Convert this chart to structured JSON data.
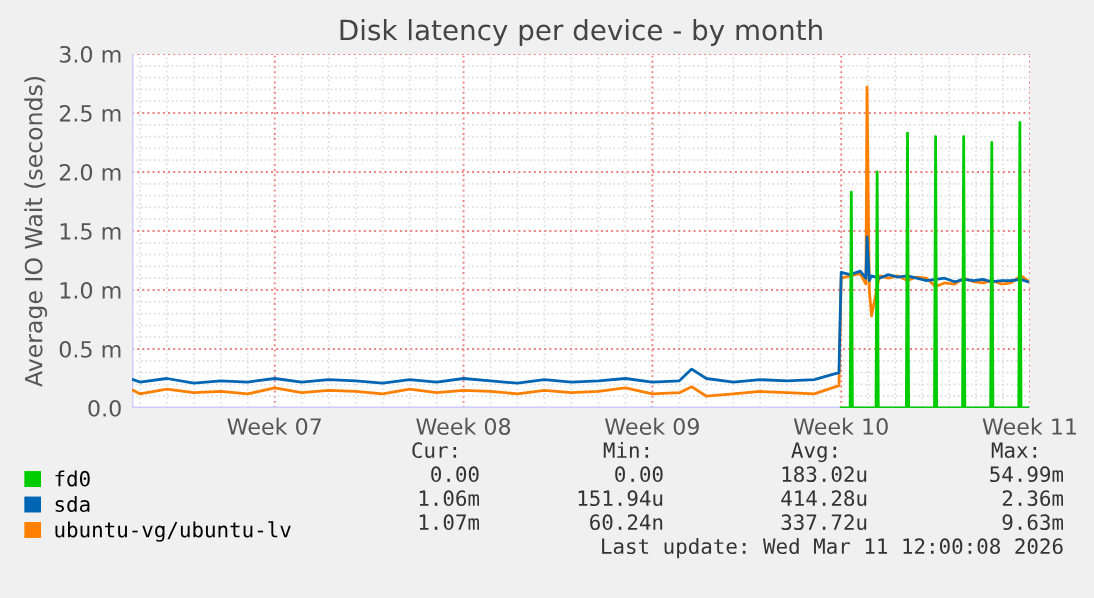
{
  "chart_data": {
    "type": "line",
    "title": "Disk latency per device - by month",
    "ylabel": "Average IO Wait (seconds)",
    "xlim": [
      "2026-02-03T17:00",
      "2026-03-09T00:00"
    ],
    "xticks": [
      {
        "value": "2026-02-09",
        "label": "Week 07"
      },
      {
        "value": "2026-02-16",
        "label": "Week 08"
      },
      {
        "value": "2026-02-23",
        "label": "Week 09"
      },
      {
        "value": "2026-03-02",
        "label": "Week 10"
      },
      {
        "value": "2026-03-09",
        "label": "Week 11"
      }
    ],
    "ylim": [
      0,
      3.0
    ],
    "yticks": [
      {
        "value": 0,
        "label": "0.0"
      },
      {
        "value": 0.5,
        "label": "0.5 m"
      },
      {
        "value": 1.0,
        "label": "1.0 m"
      },
      {
        "value": 1.5,
        "label": "1.5 m"
      },
      {
        "value": 2.0,
        "label": "2.0 m"
      },
      {
        "value": 2.5,
        "label": "2.5 m"
      },
      {
        "value": 3.0,
        "label": "3.0 m"
      }
    ],
    "grid": true,
    "legend": "bottom left",
    "series": [
      {
        "name": "fd0",
        "color": "#00cc00",
        "x": [
          "2026-03-02T00:00",
          "2026-03-02T08:00",
          "2026-03-02T09:00",
          "2026-03-02T10:00",
          "2026-03-03T07:00",
          "2026-03-03T08:00",
          "2026-03-03T09:00",
          "2026-03-04T10:00",
          "2026-03-04T11:00",
          "2026-03-04T12:00",
          "2026-03-05T11:00",
          "2026-03-05T12:00",
          "2026-03-05T13:00",
          "2026-03-06T12:00",
          "2026-03-06T13:00",
          "2026-03-06T14:00",
          "2026-03-07T13:00",
          "2026-03-07T14:00",
          "2026-03-07T15:00",
          "2026-03-08T14:00",
          "2026-03-08T15:00",
          "2026-03-08T16:00",
          "2026-03-08T22:00"
        ],
        "values": [
          0,
          0,
          1.83,
          0,
          0,
          2.0,
          0,
          0,
          2.33,
          0,
          0,
          2.3,
          0,
          0,
          2.3,
          0,
          0,
          2.25,
          0,
          0,
          2.42,
          0,
          0
        ]
      },
      {
        "name": "sda",
        "color": "#0066b3",
        "x": [
          "2026-02-03T18:00",
          "2026-02-04T00:00",
          "2026-02-05T00:00",
          "2026-02-06T00:00",
          "2026-02-07T00:00",
          "2026-02-08T00:00",
          "2026-02-09T00:00",
          "2026-02-10T00:00",
          "2026-02-11T00:00",
          "2026-02-12T00:00",
          "2026-02-13T00:00",
          "2026-02-14T00:00",
          "2026-02-15T00:00",
          "2026-02-16T00:00",
          "2026-02-17T00:00",
          "2026-02-18T00:00",
          "2026-02-19T00:00",
          "2026-02-20T00:00",
          "2026-02-21T00:00",
          "2026-02-22T00:00",
          "2026-02-23T00:00",
          "2026-02-24T00:00",
          "2026-02-24T11:00",
          "2026-02-25T00:00",
          "2026-02-26T00:00",
          "2026-02-27T00:00",
          "2026-02-28T00:00",
          "2026-03-01T00:00",
          "2026-03-01T22:00",
          "2026-03-02T00:00",
          "2026-03-02T08:00",
          "2026-03-02T17:00",
          "2026-03-02T22:00",
          "2026-03-02T23:00",
          "2026-03-03T01:00",
          "2026-03-03T03:00",
          "2026-03-03T10:00",
          "2026-03-03T18:00",
          "2026-03-04T02:00",
          "2026-03-04T11:00",
          "2026-03-04T19:00",
          "2026-03-05T04:00",
          "2026-03-05T12:00",
          "2026-03-05T20:00",
          "2026-03-06T05:00",
          "2026-03-06T13:00",
          "2026-03-06T22:00",
          "2026-03-07T06:00",
          "2026-03-07T14:00",
          "2026-03-07T23:00",
          "2026-03-08T07:00",
          "2026-03-08T16:00",
          "2026-03-08T22:00"
        ],
        "values": [
          0.24,
          0.22,
          0.25,
          0.21,
          0.23,
          0.22,
          0.25,
          0.22,
          0.24,
          0.23,
          0.21,
          0.24,
          0.22,
          0.25,
          0.23,
          0.21,
          0.24,
          0.22,
          0.23,
          0.25,
          0.22,
          0.23,
          0.33,
          0.25,
          0.22,
          0.24,
          0.23,
          0.24,
          0.3,
          1.15,
          1.13,
          1.16,
          1.1,
          1.45,
          1.08,
          1.12,
          1.1,
          1.13,
          1.11,
          1.12,
          1.1,
          1.08,
          1.09,
          1.1,
          1.07,
          1.09,
          1.08,
          1.09,
          1.07,
          1.08,
          1.08,
          1.09,
          1.07
        ]
      },
      {
        "name": "ubuntu-vg/ubuntu-lv",
        "color": "#ff8000",
        "x": [
          "2026-02-03T18:00",
          "2026-02-04T00:00",
          "2026-02-05T00:00",
          "2026-02-06T00:00",
          "2026-02-07T00:00",
          "2026-02-08T00:00",
          "2026-02-09T00:00",
          "2026-02-10T00:00",
          "2026-02-11T00:00",
          "2026-02-12T00:00",
          "2026-02-13T00:00",
          "2026-02-14T00:00",
          "2026-02-15T00:00",
          "2026-02-16T00:00",
          "2026-02-17T00:00",
          "2026-02-18T00:00",
          "2026-02-19T00:00",
          "2026-02-20T00:00",
          "2026-02-21T00:00",
          "2026-02-22T00:00",
          "2026-02-23T00:00",
          "2026-02-24T00:00",
          "2026-02-24T11:00",
          "2026-02-25T00:00",
          "2026-02-26T00:00",
          "2026-02-27T00:00",
          "2026-02-28T00:00",
          "2026-03-01T00:00",
          "2026-03-01T22:00",
          "2026-03-02T00:00",
          "2026-03-02T08:00",
          "2026-03-02T17:00",
          "2026-03-02T22:00",
          "2026-03-02T23:00",
          "2026-03-03T01:00",
          "2026-03-03T03:00",
          "2026-03-03T10:00",
          "2026-03-03T18:00",
          "2026-03-04T02:00",
          "2026-03-04T11:00",
          "2026-03-04T19:00",
          "2026-03-05T04:00",
          "2026-03-05T12:00",
          "2026-03-05T20:00",
          "2026-03-06T05:00",
          "2026-03-06T13:00",
          "2026-03-06T22:00",
          "2026-03-07T06:00",
          "2026-03-07T14:00",
          "2026-03-07T23:00",
          "2026-03-08T07:00",
          "2026-03-08T16:00",
          "2026-03-08T22:00"
        ],
        "values": [
          0.15,
          0.12,
          0.16,
          0.13,
          0.14,
          0.12,
          0.17,
          0.13,
          0.15,
          0.14,
          0.12,
          0.16,
          0.13,
          0.15,
          0.14,
          0.12,
          0.15,
          0.13,
          0.14,
          0.17,
          0.12,
          0.13,
          0.18,
          0.1,
          0.12,
          0.14,
          0.13,
          0.12,
          0.19,
          1.1,
          1.12,
          1.14,
          1.05,
          2.72,
          1.0,
          0.78,
          1.12,
          1.1,
          1.12,
          1.08,
          1.11,
          1.1,
          1.03,
          1.06,
          1.05,
          1.1,
          1.07,
          1.06,
          1.08,
          1.05,
          1.06,
          1.12,
          1.08
        ]
      }
    ],
    "annotations": [
      "Cur:",
      "Min:",
      "Avg:",
      "Max:",
      "0.00",
      "0.00",
      "183.02u",
      "54.99m",
      "1.06m",
      "151.94u",
      "414.28u",
      "2.36m",
      "1.07m",
      "60.24n",
      "337.72u",
      "9.63m",
      "Last update: Wed Mar 11 12:00:08 2026"
    ]
  }
}
